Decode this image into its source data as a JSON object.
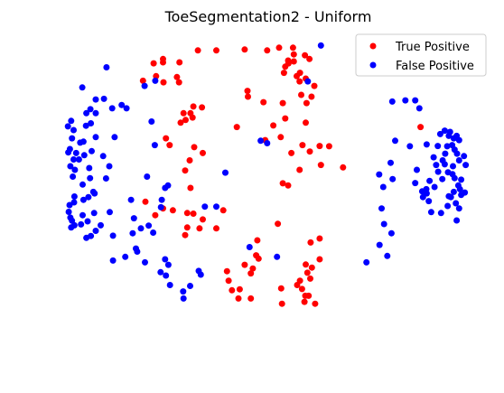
{
  "chart_data": {
    "type": "scatter",
    "title": "ToeSegmentation2 - Uniform",
    "xlabel": "",
    "ylabel": "",
    "axes_visible": false,
    "grid": false,
    "xlim": [
      0,
      100
    ],
    "ylim": [
      0,
      100
    ],
    "legend": {
      "placement": "top-right"
    },
    "series": [
      {
        "name": "True Positive",
        "color": "#ff0000",
        "points": [
          [
            32.4,
            2.6
          ],
          [
            36.9,
            2.6
          ],
          [
            43.8,
            2.3
          ],
          [
            49.3,
            2.6
          ],
          [
            52.2,
            1.7
          ],
          [
            55.6,
            1.7
          ],
          [
            55.8,
            6.2
          ],
          [
            54.5,
            6.8
          ],
          [
            53.7,
            7.9
          ],
          [
            54.4,
            5.9
          ],
          [
            53.4,
            9.9
          ],
          [
            55.8,
            3.9
          ],
          [
            57.3,
            9.9
          ],
          [
            57.2,
            12.7
          ],
          [
            58.7,
            11.8
          ],
          [
            58.5,
            4.2
          ],
          [
            56.5,
            11.0
          ],
          [
            59.6,
            5.4
          ],
          [
            21.6,
            6.8
          ],
          [
            23.9,
            6.5
          ],
          [
            27.9,
            6.5
          ],
          [
            22.2,
            11.0
          ],
          [
            24.0,
            13.0
          ],
          [
            27.3,
            11.3
          ],
          [
            23.9,
            5.4
          ],
          [
            19.0,
            12.5
          ],
          [
            27.8,
            13.0
          ],
          [
            60.1,
            17.7
          ],
          [
            60.8,
            14.2
          ],
          [
            57.6,
            17.1
          ],
          [
            58.9,
            19.8
          ],
          [
            44.5,
            15.8
          ],
          [
            44.6,
            17.7
          ],
          [
            33.4,
            21.2
          ],
          [
            30.6,
            23.1
          ],
          [
            31.1,
            24.5
          ],
          [
            28.9,
            23.1
          ],
          [
            29.4,
            25.3
          ],
          [
            31.3,
            20.9
          ],
          [
            28.2,
            26.2
          ],
          [
            41.9,
            27.6
          ],
          [
            48.4,
            19.5
          ],
          [
            50.8,
            27.1
          ],
          [
            53.7,
            24.8
          ],
          [
            53.1,
            19.8
          ],
          [
            58.7,
            26.2
          ],
          [
            57.9,
            33.5
          ],
          [
            55.2,
            36.1
          ],
          [
            48.8,
            31.9
          ],
          [
            52.6,
            30.9
          ],
          [
            24.6,
            31.3
          ],
          [
            25.5,
            33.5
          ],
          [
            31.5,
            34.2
          ],
          [
            33.6,
            36.1
          ],
          [
            30.4,
            38.5
          ],
          [
            29.3,
            41.8
          ],
          [
            30.6,
            47.5
          ],
          [
            59.7,
            35.6
          ],
          [
            64.4,
            33.9
          ],
          [
            62.4,
            40.0
          ],
          [
            67.8,
            40.8
          ],
          [
            53.1,
            46.0
          ],
          [
            54.4,
            46.7
          ],
          [
            57.2,
            41.6
          ],
          [
            62.1,
            33.8
          ],
          [
            86.7,
            27.6
          ],
          [
            19.6,
            52.0
          ],
          [
            23.9,
            54.2
          ],
          [
            26.3,
            54.8
          ],
          [
            29.8,
            55.7
          ],
          [
            31.3,
            55.9
          ],
          [
            33.6,
            57.8
          ],
          [
            22.0,
            56.4
          ],
          [
            29.3,
            62.9
          ],
          [
            29.8,
            60.4
          ],
          [
            32.8,
            60.7
          ],
          [
            36.9,
            60.7
          ],
          [
            38.6,
            54.8
          ],
          [
            51.9,
            59.2
          ],
          [
            46.9,
            64.6
          ],
          [
            46.6,
            69.5
          ],
          [
            47.2,
            70.6
          ],
          [
            45.8,
            73.8
          ],
          [
            43.8,
            72.6
          ],
          [
            39.5,
            74.7
          ],
          [
            45.3,
            75.4
          ],
          [
            39.9,
            77.8
          ],
          [
            40.7,
            80.9
          ],
          [
            58.7,
            72.5
          ],
          [
            59.1,
            75.2
          ],
          [
            60.2,
            73.5
          ],
          [
            59.8,
            77.1
          ],
          [
            57.3,
            77.8
          ],
          [
            62.1,
            64.0
          ],
          [
            59.9,
            65.3
          ],
          [
            62.1,
            70.8
          ],
          [
            52.7,
            80.3
          ],
          [
            42.6,
            80.6
          ],
          [
            42.3,
            83.6
          ],
          [
            45.3,
            83.6
          ],
          [
            52.9,
            85.3
          ],
          [
            56.6,
            79.2
          ],
          [
            57.8,
            80.5
          ],
          [
            58.6,
            82.7
          ],
          [
            59.4,
            82.7
          ],
          [
            58.4,
            84.7
          ],
          [
            61.0,
            85.3
          ]
        ]
      },
      {
        "name": "False Positive",
        "color": "#0000ff",
        "points": [
          [
            62.4,
            1.0
          ],
          [
            22.0,
            12.5
          ],
          [
            19.4,
            14.2
          ],
          [
            15.0,
            21.5
          ],
          [
            21.1,
            25.8
          ],
          [
            21.9,
            33.5
          ],
          [
            47.7,
            32.1
          ],
          [
            49.3,
            32.9
          ],
          [
            59.2,
            12.7
          ],
          [
            79.8,
            19.3
          ],
          [
            83.0,
            18.9
          ],
          [
            85.4,
            18.9
          ],
          [
            86.4,
            21.5
          ],
          [
            80.5,
            32.1
          ],
          [
            84.1,
            33.9
          ],
          [
            92.6,
            28.8
          ],
          [
            93.6,
            30.5
          ],
          [
            94.8,
            31.3
          ],
          [
            91.5,
            29.9
          ],
          [
            93.2,
            33.9
          ],
          [
            92.1,
            38.5
          ],
          [
            92.6,
            39.8
          ],
          [
            94.6,
            40.4
          ],
          [
            93.4,
            42.4
          ],
          [
            95.0,
            44.3
          ],
          [
            90.5,
            40.0
          ],
          [
            91.0,
            42.2
          ],
          [
            88.9,
            45.2
          ],
          [
            90.1,
            47.2
          ],
          [
            92.0,
            44.6
          ],
          [
            94.5,
            43.0
          ],
          [
            96.6,
            44.8
          ],
          [
            97.7,
            40.0
          ],
          [
            97.3,
            37.1
          ],
          [
            96.1,
            38.5
          ],
          [
            95.6,
            36.3
          ],
          [
            95.0,
            35.0
          ],
          [
            92.7,
            36.3
          ],
          [
            90.9,
            33.8
          ],
          [
            89.9,
            37.5
          ],
          [
            94.4,
            33.5
          ],
          [
            96.1,
            31.9
          ],
          [
            95.5,
            30.5
          ],
          [
            93.9,
            29.2
          ],
          [
            88.2,
            33.3
          ],
          [
            85.8,
            41.6
          ],
          [
            85.4,
            45.9
          ],
          [
            87.1,
            48.6
          ],
          [
            88.2,
            49.3
          ],
          [
            88.7,
            51.8
          ],
          [
            89.3,
            55.4
          ],
          [
            91.7,
            55.7
          ],
          [
            93.3,
            53.4
          ],
          [
            94.1,
            50.5
          ],
          [
            95.3,
            52.5
          ],
          [
            96.1,
            54.2
          ],
          [
            95.5,
            58.1
          ],
          [
            96.6,
            49.8
          ],
          [
            97.5,
            49.0
          ],
          [
            96.3,
            47.9
          ],
          [
            95.9,
            46.7
          ],
          [
            94.8,
            48.8
          ],
          [
            93.6,
            50.2
          ],
          [
            88.1,
            47.9
          ],
          [
            87.3,
            50.5
          ],
          [
            76.6,
            43.1
          ],
          [
            77.6,
            47.2
          ],
          [
            77.2,
            54.2
          ],
          [
            77.8,
            59.3
          ],
          [
            79.6,
            62.3
          ],
          [
            76.7,
            66.1
          ],
          [
            78.6,
            69.7
          ],
          [
            73.5,
            71.8
          ],
          [
            79.4,
            39.3
          ],
          [
            79.9,
            44.6
          ],
          [
            10.1,
            8.1
          ],
          [
            4.2,
            14.7
          ],
          [
            6.2,
            21.8
          ],
          [
            7.5,
            23.1
          ],
          [
            5.1,
            27.2
          ],
          [
            4.5,
            32.4
          ],
          [
            1.7,
            31.3
          ],
          [
            1.2,
            34.8
          ],
          [
            2.1,
            38.2
          ],
          [
            1.3,
            40.4
          ],
          [
            1.9,
            43.8
          ],
          [
            3.4,
            38.2
          ],
          [
            4.7,
            36.8
          ],
          [
            2.7,
            36.1
          ],
          [
            3.7,
            32.7
          ],
          [
            2.1,
            28.6
          ],
          [
            1.5,
            25.6
          ],
          [
            0.7,
            27.4
          ],
          [
            0.8,
            35.9
          ],
          [
            2.4,
            41.6
          ],
          [
            4.3,
            46.4
          ],
          [
            2.3,
            50.3
          ],
          [
            2.2,
            52.2
          ],
          [
            1.1,
            53.1
          ],
          [
            0.9,
            55.3
          ],
          [
            1.3,
            57.2
          ],
          [
            1.7,
            58.2
          ],
          [
            1.5,
            60.4
          ],
          [
            2.3,
            59.7
          ],
          [
            3.9,
            59.4
          ],
          [
            5.5,
            58.4
          ],
          [
            4.3,
            56.4
          ],
          [
            4.5,
            51.4
          ],
          [
            5.7,
            50.5
          ],
          [
            6.9,
            48.8
          ],
          [
            6.1,
            44.3
          ],
          [
            5.9,
            41.0
          ],
          [
            6.5,
            35.5
          ],
          [
            7.5,
            30.9
          ],
          [
            6.3,
            26.4
          ],
          [
            5.2,
            23.1
          ],
          [
            7.5,
            18.6
          ],
          [
            9.5,
            18.4
          ],
          [
            11.5,
            21.5
          ],
          [
            13.8,
            20.4
          ],
          [
            12.1,
            30.9
          ],
          [
            9.3,
            37.1
          ],
          [
            10.8,
            40.4
          ],
          [
            10.0,
            44.4
          ],
          [
            7.2,
            49.3
          ],
          [
            7.1,
            55.7
          ],
          [
            5.2,
            63.8
          ],
          [
            6.3,
            63.2
          ],
          [
            7.5,
            61.5
          ],
          [
            8.7,
            59.7
          ],
          [
            10.9,
            55.4
          ],
          [
            11.7,
            63.1
          ],
          [
            16.1,
            51.4
          ],
          [
            16.8,
            57.4
          ],
          [
            16.5,
            62.3
          ],
          [
            17.3,
            67.3
          ],
          [
            18.5,
            60.7
          ],
          [
            20.4,
            59.8
          ],
          [
            20.0,
            43.8
          ],
          [
            24.4,
            47.5
          ],
          [
            25.1,
            46.7
          ],
          [
            23.6,
            51.4
          ],
          [
            23.4,
            53.8
          ],
          [
            21.5,
            62.1
          ],
          [
            11.7,
            71.2
          ],
          [
            17.6,
            68.3
          ],
          [
            14.7,
            70.0
          ],
          [
            19.5,
            71.8
          ],
          [
            24.4,
            70.8
          ],
          [
            23.3,
            75.0
          ],
          [
            25.2,
            72.6
          ],
          [
            24.6,
            76.1
          ],
          [
            25.6,
            79.2
          ],
          [
            28.8,
            81.3
          ],
          [
            32.6,
            74.6
          ],
          [
            33.1,
            75.8
          ],
          [
            28.9,
            83.6
          ],
          [
            30.5,
            79.5
          ],
          [
            34.1,
            53.6
          ],
          [
            36.9,
            53.6
          ],
          [
            39.1,
            42.5
          ],
          [
            45.0,
            66.8
          ],
          [
            51.7,
            70.0
          ]
        ]
      }
    ]
  }
}
